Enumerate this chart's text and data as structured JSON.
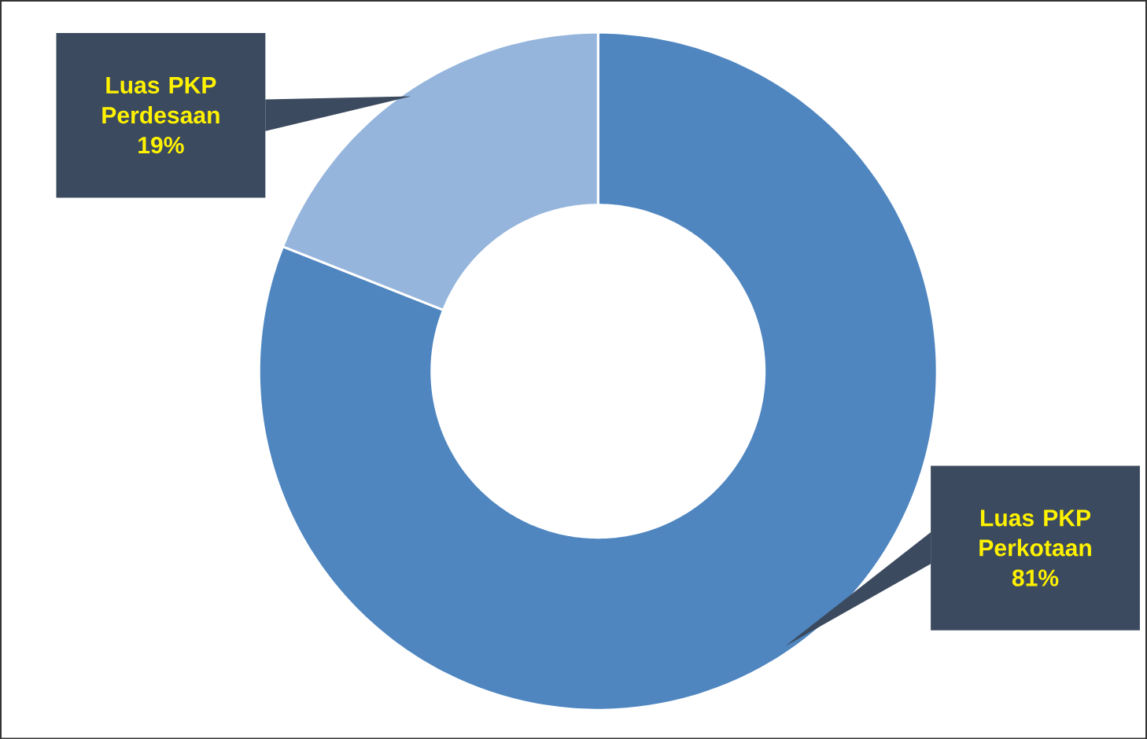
{
  "chart_data": {
    "type": "donut",
    "categories": [
      "Luas PKP Perkotaan",
      "Luas PKP Perdesaan"
    ],
    "values": [
      81,
      19
    ],
    "value_labels": [
      "81%",
      "19%"
    ],
    "colors": [
      "#4f86c0",
      "#95b5dc"
    ]
  }
}
